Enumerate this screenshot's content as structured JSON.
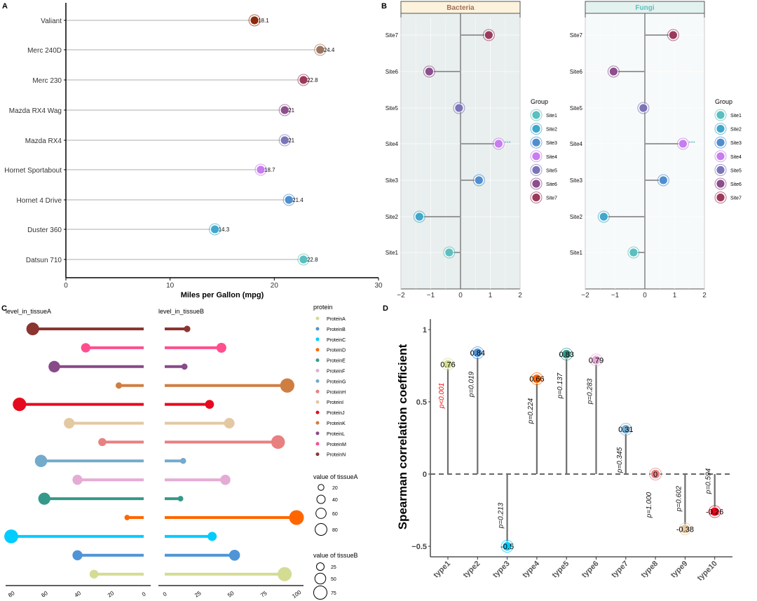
{
  "chart_data": [
    {
      "panel": "A",
      "type": "lollipop",
      "xlabel": "Miles per Gallon (mpg)",
      "xlim": [
        0,
        30
      ],
      "xticks": [
        0,
        10,
        20,
        30
      ],
      "categories": [
        "Valiant",
        "Merc 240D",
        "Merc 230",
        "Mazda RX4 Wag",
        "Mazda RX4",
        "Hornet Sportabout",
        "Hornet 4 Drive",
        "Duster 360",
        "Datsun 710"
      ],
      "values": [
        18.1,
        24.4,
        22.8,
        21,
        21,
        18.7,
        21.4,
        14.3,
        22.8
      ],
      "colors": [
        "#8e2a0c",
        "#9c7460",
        "#9b3a5c",
        "#8c4f8c",
        "#7b74b8",
        "#c77cf0",
        "#4f8fd0",
        "#3fa8cc",
        "#5bbfbf"
      ]
    },
    {
      "panel": "B",
      "type": "lollipop",
      "facets": [
        {
          "label": "Bacteria",
          "strip_fill": "#fdf3dc",
          "label_color": "#a0705a",
          "bg": "#e9efee"
        },
        {
          "label": "Fungi",
          "strip_fill": "#e3f2ef",
          "label_color": "#5bbfbf",
          "bg": "#f7fafa"
        }
      ],
      "xlim": [
        -2,
        2
      ],
      "xticks": [
        "−2",
        "−1",
        "0",
        "1",
        "2"
      ],
      "categories": [
        "Site1",
        "Site2",
        "Site3",
        "Site4",
        "Site5",
        "Site6",
        "Site7"
      ],
      "values": [
        -0.38,
        -1.38,
        0.62,
        1.28,
        -0.05,
        -1.05,
        0.95
      ],
      "colors": [
        "#5bbfbf",
        "#3fa8cc",
        "#4f8fd0",
        "#c77cf0",
        "#7b74b8",
        "#8c4f8c",
        "#9b3a5c"
      ],
      "annotation": {
        "category": "Site4",
        "text": "***",
        "color": "#5bbfbf"
      },
      "legend": {
        "title": "Group",
        "items": [
          "Site1",
          "Site2",
          "Site3",
          "Site4",
          "Site5",
          "Site6",
          "Site7"
        ]
      }
    },
    {
      "panel": "C",
      "type": "diverging-lollipop",
      "left_title": "level_in_tissueA",
      "right_title": "level_in_tissueB",
      "left_xticks": [
        80,
        60,
        40,
        20,
        0
      ],
      "right_xticks": [
        0,
        25,
        50,
        75,
        100
      ],
      "proteins": [
        "ProteinA",
        "ProteinB",
        "ProteinC",
        "ProteinD",
        "ProteinE",
        "ProteinF",
        "ProteinG",
        "ProteinH",
        "ProteinI",
        "ProteinJ",
        "ProteinK",
        "ProteinL",
        "ProteinM",
        "ProteinN"
      ],
      "tissueA": [
        30,
        40,
        80,
        10,
        60,
        40,
        62,
        25,
        45,
        75,
        15,
        54,
        35,
        67
      ],
      "tissueB": [
        91,
        53,
        36,
        100,
        12,
        46,
        14,
        86,
        49,
        34,
        93,
        15,
        43,
        17
      ],
      "colors": [
        "#d4dc94",
        "#4f94d6",
        "#00ccff",
        "#ff6600",
        "#35998a",
        "#e4acd4",
        "#74aacc",
        "#e88080",
        "#e3c8a2",
        "#e60a1e",
        "#cf7e42",
        "#884a88",
        "#ff4f8f",
        "#8b3530"
      ],
      "legend": {
        "title": "protein",
        "sizeA_title": "value of tissueA",
        "sizeA": [
          20,
          40,
          60,
          80
        ],
        "sizeB_title": "value of tissueB",
        "sizeB": [
          25,
          50,
          75
        ]
      }
    },
    {
      "panel": "D",
      "type": "lollipop",
      "ylabel": "Spearman correlation coefficient",
      "ylim": [
        -0.55,
        1.08
      ],
      "yticks": [
        "1",
        "0.5",
        "0",
        "−0.5"
      ],
      "ytick_values": [
        1,
        0.5,
        0,
        -0.5
      ],
      "categories": [
        "type1",
        "type2",
        "type3",
        "type4",
        "type5",
        "type6",
        "type7",
        "type8",
        "type9",
        "type10"
      ],
      "values": [
        0.76,
        0.84,
        -0.5,
        0.66,
        0.83,
        0.79,
        0.31,
        0,
        -0.38,
        -0.26
      ],
      "labels": [
        "0.76",
        "0.84",
        "-0.5",
        "0.66",
        "0.83",
        "0.79",
        "0.31",
        "0",
        "-0.38",
        "-0.26"
      ],
      "pvalues": [
        "p<0.001",
        "p=0.019",
        "p=0.213",
        "p=0.224",
        "p=0.137",
        "p=0.283",
        "p=0.345",
        "p=1.000",
        "p=0.602",
        "p=0.594"
      ],
      "significant_color": "#ff0000",
      "colors": [
        "#d4dc94",
        "#4f94d6",
        "#00ccff",
        "#ff6600",
        "#35998a",
        "#e4acd4",
        "#74aacc",
        "#e88080",
        "#e3c8a2",
        "#e60a1e"
      ]
    }
  ],
  "panel_labels": [
    "A",
    "B",
    "C",
    "D"
  ]
}
